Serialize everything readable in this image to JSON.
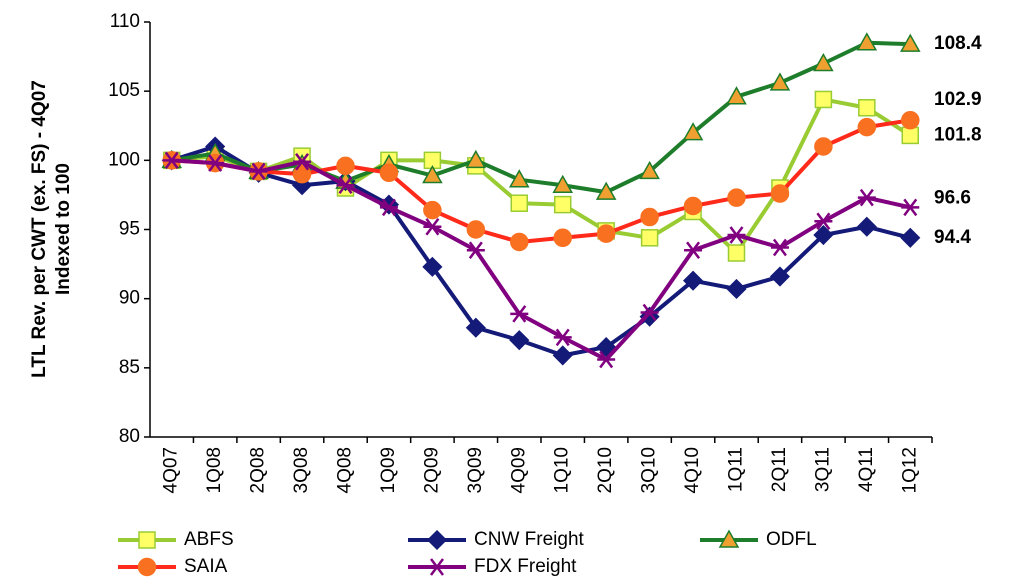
{
  "chart_data": {
    "type": "line",
    "ylabel": [
      "LTL Rev. per CWT (ex. FS) - 4Q07",
      "Indexed to 100"
    ],
    "categories": [
      "4Q07",
      "1Q08",
      "2Q08",
      "3Q08",
      "4Q08",
      "1Q09",
      "2Q09",
      "3Q09",
      "4Q09",
      "1Q10",
      "2Q10",
      "3Q10",
      "4Q10",
      "1Q11",
      "2Q11",
      "3Q11",
      "4Q11",
      "1Q12"
    ],
    "ylim": [
      80,
      110
    ],
    "yticks": [
      80,
      85,
      90,
      95,
      100,
      105,
      110
    ],
    "grid": false,
    "legend": "bottom",
    "series": [
      {
        "name": "ABFS",
        "color": "#99cc33",
        "marker": "square",
        "marker_color": "#ffff66",
        "values": [
          100,
          100.3,
          99.2,
          100.3,
          98,
          100,
          100,
          99.6,
          96.9,
          96.8,
          94.9,
          94.4,
          96.3,
          93.3,
          98,
          104.4,
          103.8,
          101.8
        ]
      },
      {
        "name": "CNW Freight",
        "color": "#141a78",
        "marker": "diamond",
        "marker_color": "#141a78",
        "values": [
          100,
          101,
          99.1,
          98.2,
          98.5,
          96.8,
          92.3,
          87.9,
          87,
          85.9,
          86.5,
          88.7,
          91.3,
          90.7,
          91.6,
          94.6,
          95.2,
          94.4
        ]
      },
      {
        "name": "ODFL",
        "color": "#1e7d2a",
        "marker": "triangle",
        "marker_color": "#f0a030",
        "values": [
          100,
          100.5,
          99.2,
          99.7,
          98.5,
          99.7,
          98.9,
          100,
          98.6,
          98.2,
          97.7,
          99.2,
          102,
          104.6,
          105.6,
          107,
          108.5,
          108.4
        ]
      },
      {
        "name": "SAIA",
        "color": "#ff2a1a",
        "marker": "circle",
        "marker_color": "#f97020",
        "values": [
          100,
          99.8,
          99.2,
          99,
          99.6,
          99.1,
          96.4,
          95,
          94.1,
          94.4,
          94.7,
          95.9,
          96.7,
          97.3,
          97.6,
          101,
          102.4,
          102.9
        ]
      },
      {
        "name": "FDX Freight",
        "color": "#800080",
        "marker": "star",
        "marker_color": "#800080",
        "values": [
          100,
          99.8,
          99.2,
          99.9,
          98.2,
          96.6,
          95.2,
          93.5,
          88.9,
          87.2,
          85.6,
          89,
          93.5,
          94.6,
          93.7,
          95.6,
          97.3,
          96.6
        ]
      }
    ]
  }
}
